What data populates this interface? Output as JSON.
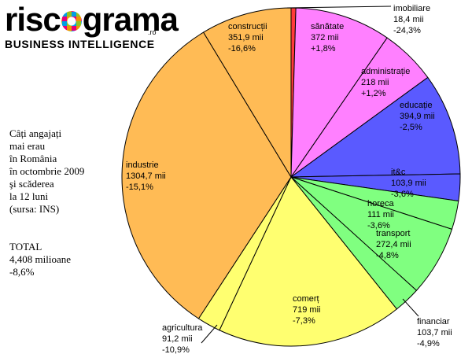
{
  "logo": {
    "part1": "risc",
    "part2": "grama",
    "domain": ".ro",
    "tagline": "BUSINESS INTELLIGENCE"
  },
  "side_text": {
    "lines": [
      "Câți angajați",
      "mai erau",
      "în România",
      "în octombrie 2009",
      "şi scăderea",
      "la 12 luni",
      "(sursa: INS)"
    ]
  },
  "total": {
    "label": "TOTAL",
    "value": "4,408 milioane",
    "change": "-8,6%"
  },
  "chart_data": {
    "type": "pie",
    "unit": "mii",
    "slices": [
      {
        "name": "imobiliare",
        "value": 18.4,
        "value_label": "18,4 mii",
        "change": "-24,3%",
        "color": "#ff3b3b"
      },
      {
        "name": "sănătate",
        "value": 372,
        "value_label": "372 mii",
        "change": "+1,8%",
        "color": "#ff80ff"
      },
      {
        "name": "administrație",
        "value": 218,
        "value_label": "218 mii",
        "change": "+1,2%",
        "color": "#ff80ff"
      },
      {
        "name": "educație",
        "value": 394.9,
        "value_label": "394,9 mii",
        "change": "-2,5%",
        "color": "#5a5aff"
      },
      {
        "name": "it&c",
        "value": 103.9,
        "value_label": "103,9 mii",
        "change": "-3,6%",
        "color": "#5a5aff"
      },
      {
        "name": "horeca",
        "value": 111,
        "value_label": "111 mii",
        "change": "-3,6%",
        "color": "#80ff80"
      },
      {
        "name": "transport",
        "value": 272.4,
        "value_label": "272,4 mii",
        "change": "-4,8%",
        "color": "#80ff80"
      },
      {
        "name": "financiar",
        "value": 103.7,
        "value_label": "103,7 mii",
        "change": "-4,9%",
        "color": "#80ff80"
      },
      {
        "name": "comerț",
        "value": 719,
        "value_label": "719 mii",
        "change": "-7,3%",
        "color": "#ffff70"
      },
      {
        "name": "agricultura",
        "value": 91.2,
        "value_label": "91,2 mii",
        "change": "-10,9%",
        "color": "#ffff70"
      },
      {
        "name": "industrie",
        "value": 1304.7,
        "value_label": "1304,7 mii",
        "change": "-15,1%",
        "color": "#ffbb55"
      },
      {
        "name": "construcții",
        "value": 351.9,
        "value_label": "351,9 mii",
        "change": "-16,6%",
        "color": "#ffbb55"
      }
    ]
  }
}
